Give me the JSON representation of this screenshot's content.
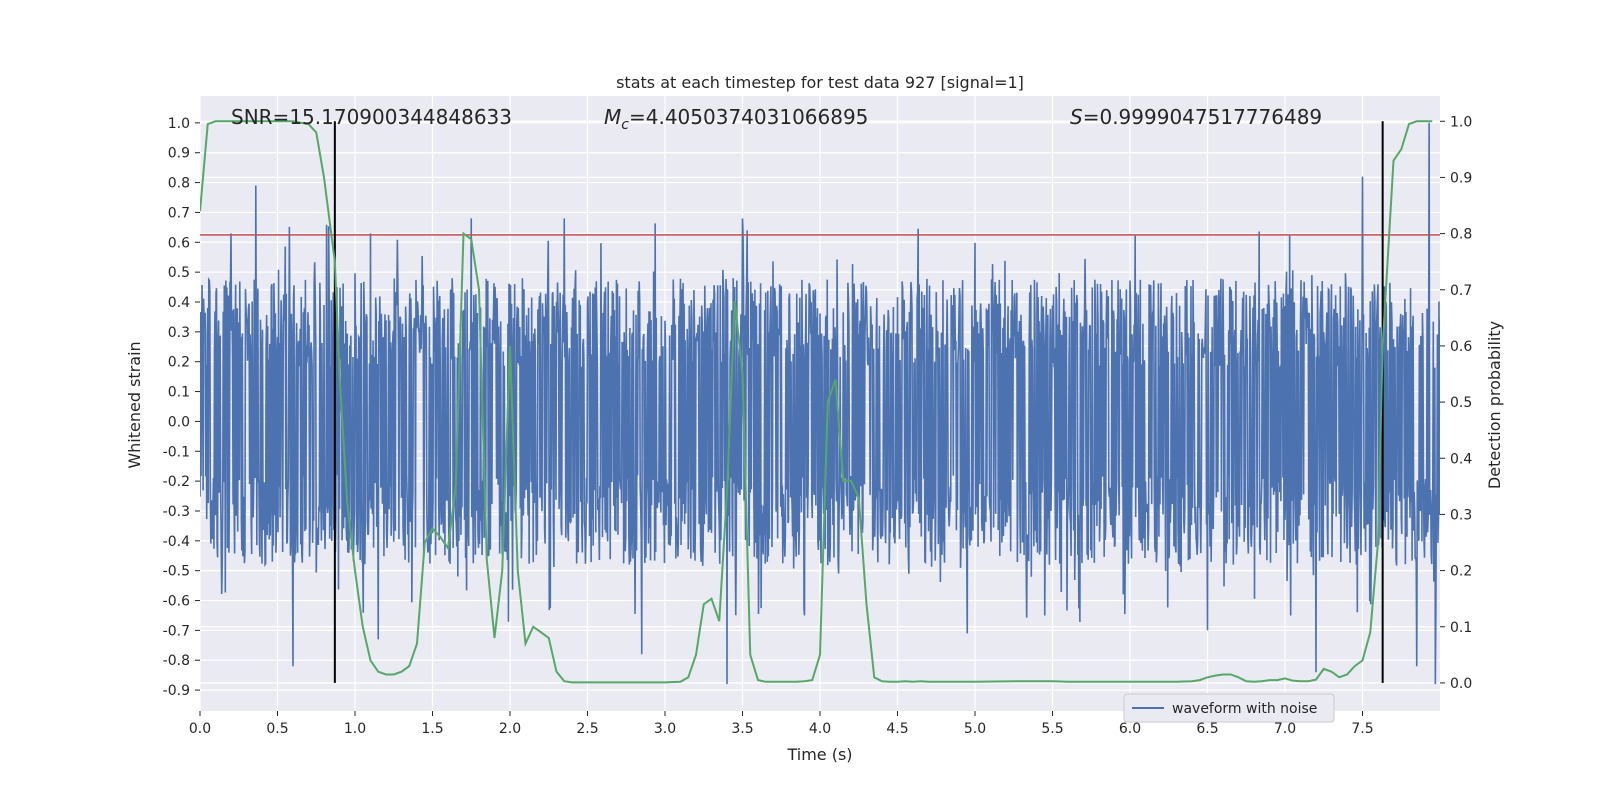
{
  "chart_data": {
    "type": "line",
    "title": "stats at each timestep for test data 927 [signal=1]",
    "xlabel": "Time (s)",
    "ylabel_left": "Whitened strain",
    "ylabel_right": "Detection probability",
    "xlim": [
      0.0,
      8.0
    ],
    "ylim_left": [
      -0.97,
      1.09
    ],
    "ylim_right": [
      -0.05,
      1.045
    ],
    "x_ticks": [
      0.0,
      0.5,
      1.0,
      1.5,
      2.0,
      2.5,
      3.0,
      3.5,
      4.0,
      4.5,
      5.0,
      5.5,
      6.0,
      6.5,
      7.0,
      7.5
    ],
    "x_tick_labels": [
      "0.0",
      "0.5",
      "1.0",
      "1.5",
      "2.0",
      "2.5",
      "3.0",
      "3.5",
      "4.0",
      "4.5",
      "5.0",
      "5.5",
      "6.0",
      "6.5",
      "7.0",
      "7.5"
    ],
    "y_ticks_left": [
      1.0,
      0.9,
      0.8,
      0.7,
      0.6,
      0.5,
      0.4,
      0.3,
      0.2,
      0.1,
      0.0,
      -0.1,
      -0.2,
      -0.3,
      -0.4,
      -0.5,
      -0.6,
      -0.7,
      -0.8,
      -0.9
    ],
    "y_tick_labels_left": [
      "1.0",
      "0.9",
      "0.8",
      "0.7",
      "0.6",
      "0.5",
      "0.4",
      "0.3",
      "0.2",
      "0.1",
      "0.0",
      "-0.1",
      "-0.2",
      "-0.3",
      "-0.4",
      "-0.5",
      "-0.6",
      "-0.7",
      "-0.8",
      "-0.9"
    ],
    "y_ticks_right": [
      1.0,
      0.9,
      0.8,
      0.7,
      0.6,
      0.5,
      0.4,
      0.3,
      0.2,
      0.1,
      0.0
    ],
    "y_tick_labels_right": [
      "1.0",
      "0.9",
      "0.8",
      "0.7",
      "0.6",
      "0.5",
      "0.4",
      "0.3",
      "0.2",
      "0.1",
      "0.0"
    ],
    "threshold_left": 0.625,
    "vertical_lines_x": [
      0.87,
      7.63
    ],
    "annotations": [
      {
        "prefix": "SNR=",
        "value": "15.170900344848633",
        "x": 0.2
      },
      {
        "prefix": "",
        "symbol": "M",
        "subscript": "c",
        "eq": "=",
        "value": "4.4050374031066895",
        "x": 2.6
      },
      {
        "prefix": "",
        "symbol": "S",
        "eq": "=",
        "value": "0.9999047517776489",
        "x": 5.6
      }
    ],
    "series": [
      {
        "name": "waveform with noise",
        "axis": "left",
        "envelope": {
          "typical_abs": 0.4,
          "peaks": [
            [
              0.2,
              0.63
            ],
            [
              0.36,
              0.79
            ],
            [
              0.6,
              -0.82
            ],
            [
              1.1,
              0.63
            ],
            [
              1.15,
              -0.73
            ],
            [
              1.75,
              0.68
            ],
            [
              2.35,
              0.68
            ],
            [
              2.85,
              -0.78
            ],
            [
              3.4,
              -0.88
            ],
            [
              3.5,
              0.68
            ],
            [
              3.9,
              -0.65
            ],
            [
              4.95,
              -0.71
            ],
            [
              5.45,
              -0.65
            ],
            [
              6.5,
              -0.7
            ],
            [
              7.2,
              -0.84
            ],
            [
              7.5,
              0.82
            ],
            [
              7.85,
              -0.82
            ],
            [
              7.93,
              1.0
            ],
            [
              7.97,
              -0.88
            ]
          ]
        }
      },
      {
        "name": "detection probability",
        "axis": "right",
        "x": [
          0.0,
          0.05,
          0.1,
          0.2,
          0.3,
          0.4,
          0.5,
          0.6,
          0.7,
          0.75,
          0.8,
          0.87,
          0.9,
          0.95,
          1.0,
          1.05,
          1.1,
          1.15,
          1.2,
          1.25,
          1.3,
          1.35,
          1.4,
          1.45,
          1.5,
          1.55,
          1.6,
          1.65,
          1.7,
          1.75,
          1.8,
          1.85,
          1.9,
          1.95,
          2.0,
          2.05,
          2.1,
          2.15,
          2.2,
          2.25,
          2.3,
          2.35,
          2.4,
          2.5,
          2.6,
          3.0,
          3.1,
          3.15,
          3.2,
          3.25,
          3.3,
          3.35,
          3.4,
          3.45,
          3.5,
          3.55,
          3.6,
          3.65,
          3.7,
          3.75,
          3.8,
          3.85,
          3.9,
          3.95,
          4.0,
          4.05,
          4.1,
          4.15,
          4.2,
          4.25,
          4.3,
          4.35,
          4.4,
          4.45,
          4.5,
          4.55,
          4.6,
          4.65,
          4.7,
          5.0,
          5.3,
          5.5,
          5.6,
          5.8,
          6.0,
          6.2,
          6.3,
          6.4,
          6.45,
          6.5,
          6.55,
          6.6,
          6.65,
          6.7,
          6.75,
          6.8,
          6.85,
          6.9,
          6.95,
          7.0,
          7.05,
          7.1,
          7.15,
          7.2,
          7.25,
          7.3,
          7.35,
          7.4,
          7.45,
          7.5,
          7.55,
          7.6,
          7.63,
          7.7,
          7.75,
          7.8,
          7.85,
          7.9,
          7.95
        ],
        "y": [
          0.84,
          0.995,
          1.0,
          1.0,
          1.0,
          1.0,
          1.0,
          1.0,
          0.995,
          0.98,
          0.9,
          0.75,
          0.55,
          0.32,
          0.2,
          0.1,
          0.04,
          0.02,
          0.015,
          0.015,
          0.02,
          0.03,
          0.07,
          0.25,
          0.275,
          0.26,
          0.24,
          0.35,
          0.8,
          0.79,
          0.7,
          0.22,
          0.08,
          0.2,
          0.6,
          0.2,
          0.07,
          0.1,
          0.09,
          0.08,
          0.02,
          0.003,
          0.001,
          0.001,
          0.001,
          0.001,
          0.002,
          0.01,
          0.05,
          0.14,
          0.15,
          0.11,
          0.34,
          0.68,
          0.55,
          0.05,
          0.005,
          0.002,
          0.002,
          0.002,
          0.002,
          0.002,
          0.003,
          0.005,
          0.05,
          0.5,
          0.54,
          0.36,
          0.36,
          0.33,
          0.14,
          0.01,
          0.003,
          0.002,
          0.002,
          0.003,
          0.002,
          0.003,
          0.002,
          0.002,
          0.003,
          0.003,
          0.002,
          0.002,
          0.002,
          0.002,
          0.002,
          0.003,
          0.005,
          0.01,
          0.013,
          0.015,
          0.015,
          0.01,
          0.003,
          0.002,
          0.003,
          0.005,
          0.005,
          0.008,
          0.004,
          0.003,
          0.003,
          0.006,
          0.025,
          0.02,
          0.01,
          0.015,
          0.03,
          0.04,
          0.09,
          0.25,
          0.6,
          0.93,
          0.95,
          0.995,
          1.0,
          1.0,
          1.0
        ]
      }
    ],
    "colors": {
      "plot_bg": "#eaeaf2",
      "grid": "#ffffff",
      "waveform": "#4c72b0",
      "probability": "#55a868",
      "threshold": "#c44e52",
      "vline": "#000000",
      "text": "#262626"
    },
    "legend": {
      "position": "lower-right",
      "entries": [
        "waveform with noise"
      ]
    }
  }
}
